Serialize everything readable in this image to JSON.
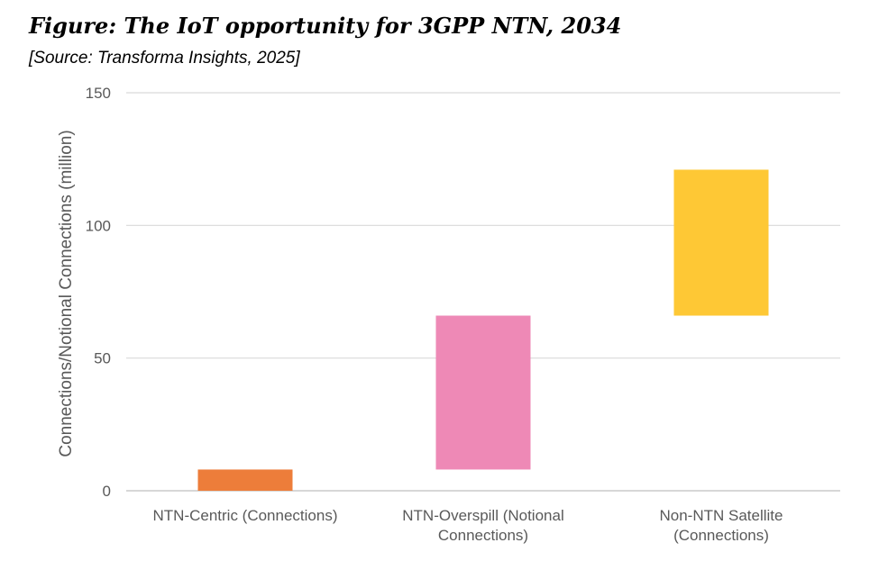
{
  "header": {
    "title": "Figure: The IoT opportunity for 3GPP NTN, 2034",
    "source": "[Source: Transforma Insights, 2025]"
  },
  "chart_data": {
    "type": "bar",
    "subtype": "waterfall",
    "title": "Figure: The IoT opportunity for 3GPP NTN, 2034",
    "subtitle": "[Source: Transforma Insights, 2025]",
    "xlabel": "",
    "ylabel": "Connections/Notional Connections (million)",
    "ylim": [
      0,
      150
    ],
    "yticks": [
      0,
      50,
      100,
      150
    ],
    "grid": true,
    "legend": "none",
    "categories": [
      [
        "NTN-Centric (Connections)"
      ],
      [
        "NTN-Overspill (Notional",
        "Connections)"
      ],
      [
        "Non-NTN Satellite",
        "(Connections)"
      ]
    ],
    "bars": [
      {
        "name": "NTN-Centric (Connections)",
        "base": 0,
        "top": 8,
        "color": "#ED7D3A"
      },
      {
        "name": "NTN-Overspill (Notional Connections)",
        "base": 8,
        "top": 66,
        "color": "#EE89B6"
      },
      {
        "name": "Non-NTN Satellite (Connections)",
        "base": 66,
        "top": 121,
        "color": "#FEC835"
      }
    ]
  }
}
